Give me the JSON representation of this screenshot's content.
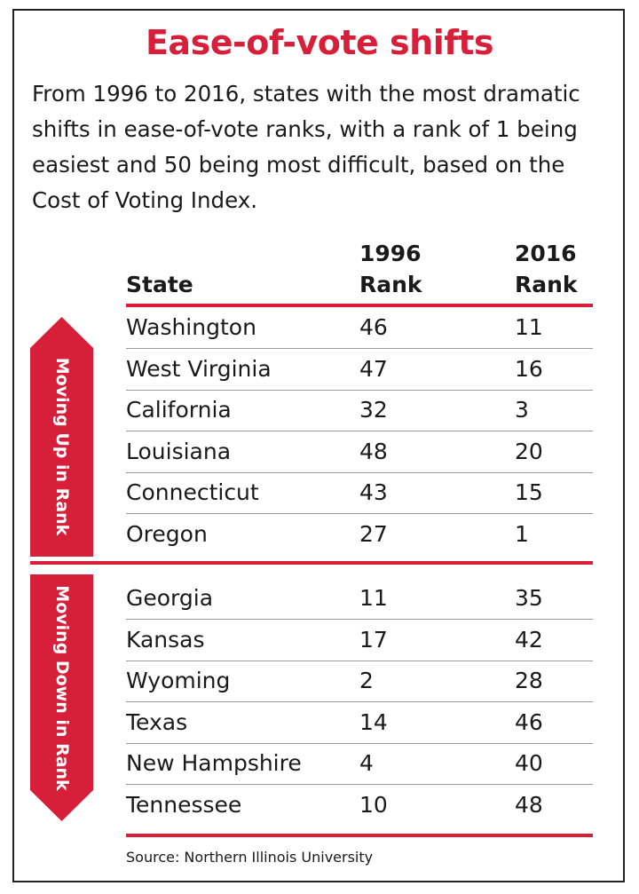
{
  "title": "Ease-of-vote shifts",
  "subtitle": "From 1996 to 2016, states with the most dramatic shifts in ease-of-vote ranks, with a rank of 1 being easiest and 50 being most difficult, based on the Cost of Voting Index.",
  "accent_color": "#d81f3a",
  "chart_data": {
    "type": "table",
    "columns": [
      "State",
      "1996 Rank",
      "2016 Rank"
    ],
    "column_header_lines": [
      [
        "",
        "State"
      ],
      [
        "1996",
        "Rank"
      ],
      [
        "2016",
        "Rank"
      ]
    ],
    "groups": [
      {
        "label": "Moving Up in Rank",
        "direction": "up",
        "rows": [
          [
            "Washington",
            "46",
            "11"
          ],
          [
            "West Virginia",
            "47",
            "16"
          ],
          [
            "California",
            "32",
            "3"
          ],
          [
            "Louisiana",
            "48",
            "20"
          ],
          [
            "Connecticut",
            "43",
            "15"
          ],
          [
            "Oregon",
            "27",
            "1"
          ]
        ]
      },
      {
        "label": "Moving Down in Rank",
        "direction": "down",
        "rows": [
          [
            "Georgia",
            "11",
            "35"
          ],
          [
            "Kansas",
            "17",
            "42"
          ],
          [
            "Wyoming",
            "2",
            "28"
          ],
          [
            "Texas",
            "14",
            "46"
          ],
          [
            "New Hampshire",
            "4",
            "40"
          ],
          [
            "Tennessee",
            "10",
            "48"
          ]
        ]
      }
    ]
  },
  "source": "Source: Northern Illinois University"
}
